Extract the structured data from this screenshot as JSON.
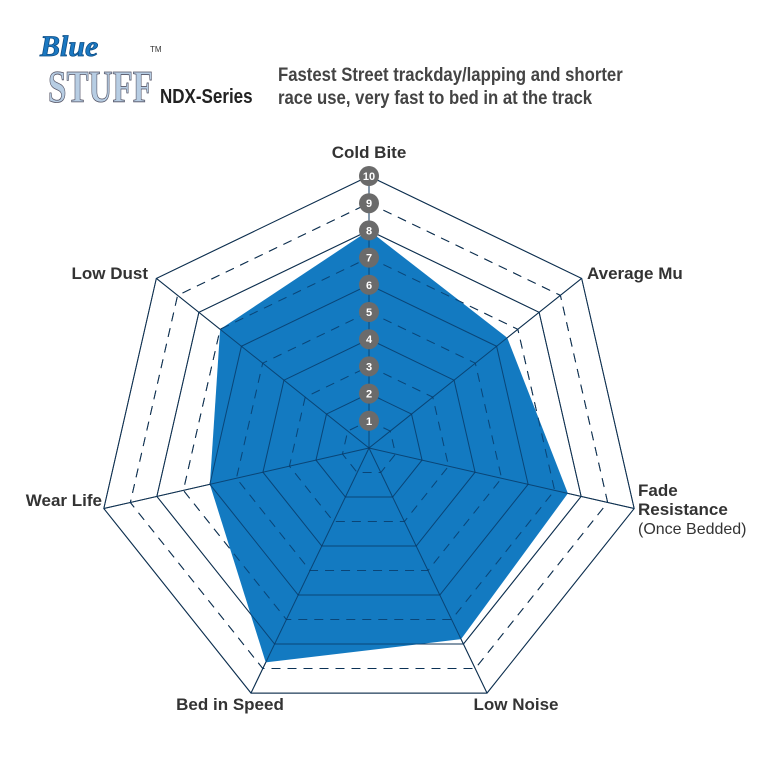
{
  "header": {
    "logo_text_top": "Blue",
    "logo_text_bottom": "STUFF",
    "logo_tm": "TM",
    "series": "NDX-Series",
    "description_line1": "Fastest Street trackday/lapping and shorter",
    "description_line2": "race use, very fast to bed in at the track"
  },
  "chart_data": {
    "type": "radar",
    "axes": [
      "Cold Bite",
      "Average Mu",
      "Fade Resistance",
      "Low Noise",
      "Bed in Speed",
      "Wear Life",
      "Low Dust"
    ],
    "axis_sublabels": {
      "Fade Resistance": "(Once Bedded)"
    },
    "values": [
      8,
      6.5,
      7.5,
      7.8,
      8.75,
      6,
      7
    ],
    "range": [
      0,
      10
    ],
    "tick_labels": [
      "1",
      "2",
      "3",
      "4",
      "5",
      "6",
      "7",
      "8",
      "9",
      "10"
    ],
    "fill_color": "#0b76bf",
    "grid": true
  }
}
